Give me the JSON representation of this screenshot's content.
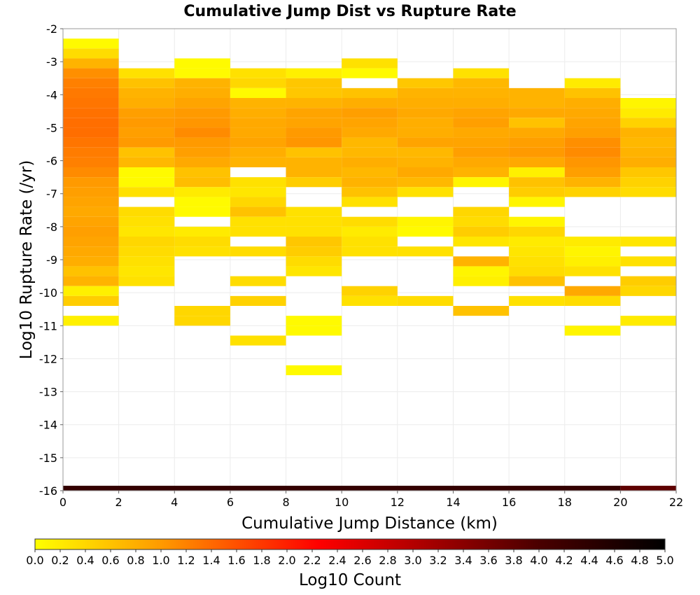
{
  "chart_data": {
    "type": "heatmap",
    "title": "Cumulative Jump Dist vs Rupture Rate",
    "xlabel": "Cumulative Jump Distance (km)",
    "ylabel": "Log10 Rupture Rate (/yr)",
    "xlim": [
      0,
      22
    ],
    "ylim": [
      -16,
      -2
    ],
    "x_ticks": [
      "0",
      "2",
      "4",
      "6",
      "8",
      "10",
      "12",
      "14",
      "16",
      "18",
      "20",
      "22"
    ],
    "y_ticks": [
      "-2",
      "-3",
      "-4",
      "-5",
      "-6",
      "-7",
      "-8",
      "-9",
      "-10",
      "-11",
      "-12",
      "-13",
      "-14",
      "-15",
      "-16"
    ],
    "x_bin_width": 2,
    "y_bin_height": 0.3,
    "grid": true,
    "colorscale": {
      "label": "Log10 Count",
      "range": [
        0,
        5
      ],
      "ticks": [
        "0.0",
        "0.2",
        "0.4",
        "0.6",
        "0.8",
        "1.0",
        "1.2",
        "1.4",
        "1.6",
        "1.8",
        "2.0",
        "2.2",
        "2.4",
        "2.6",
        "2.8",
        "3.0",
        "3.2",
        "3.4",
        "3.6",
        "3.8",
        "4.0",
        "4.2",
        "4.4",
        "4.6",
        "4.8",
        "5.0"
      ],
      "colors": [
        "#ffff00",
        "#ff6a00",
        "#ff0000",
        "#b40000",
        "#4a0000",
        "#000000"
      ]
    },
    "columns": [
      {
        "x_start": 0,
        "cells": [
          {
            "y": -2.45,
            "v": 0.05
          },
          {
            "y": -2.75,
            "v": 0.35
          },
          {
            "y": -3.05,
            "v": 0.75
          },
          {
            "y": -3.35,
            "v": 1.15
          },
          {
            "y": -3.65,
            "v": 1.35
          },
          {
            "y": -3.95,
            "v": 1.45
          },
          {
            "y": -4.25,
            "v": 1.5
          },
          {
            "y": -4.55,
            "v": 1.55
          },
          {
            "y": -4.85,
            "v": 1.6
          },
          {
            "y": -5.15,
            "v": 1.6
          },
          {
            "y": -5.45,
            "v": 1.5
          },
          {
            "y": -5.75,
            "v": 1.4
          },
          {
            "y": -6.05,
            "v": 1.35
          },
          {
            "y": -6.35,
            "v": 1.2
          },
          {
            "y": -6.65,
            "v": 1.0
          },
          {
            "y": -6.95,
            "v": 0.95
          },
          {
            "y": -7.25,
            "v": 0.9
          },
          {
            "y": -7.55,
            "v": 0.85
          },
          {
            "y": -7.85,
            "v": 0.9
          },
          {
            "y": -8.15,
            "v": 0.95
          },
          {
            "y": -8.45,
            "v": 0.9
          },
          {
            "y": -8.75,
            "v": 0.85
          },
          {
            "y": -9.05,
            "v": 0.8
          },
          {
            "y": -9.35,
            "v": 0.6
          },
          {
            "y": -9.65,
            "v": 0.75
          },
          {
            "y": -9.95,
            "v": 0.15
          },
          {
            "y": -10.25,
            "v": 0.5
          },
          {
            "y": -10.85,
            "v": 0.15
          }
        ]
      },
      {
        "x_start": 2,
        "cells": [
          {
            "y": -3.35,
            "v": 0.3
          },
          {
            "y": -3.65,
            "v": 0.6
          },
          {
            "y": -3.95,
            "v": 0.75
          },
          {
            "y": -4.25,
            "v": 0.8
          },
          {
            "y": -4.55,
            "v": 0.95
          },
          {
            "y": -4.85,
            "v": 1.0
          },
          {
            "y": -5.15,
            "v": 0.95
          },
          {
            "y": -5.45,
            "v": 1.0
          },
          {
            "y": -5.75,
            "v": 0.6
          },
          {
            "y": -6.05,
            "v": 0.7
          },
          {
            "y": -6.35,
            "v": 0.05
          },
          {
            "y": -6.65,
            "v": 0.05
          },
          {
            "y": -6.95,
            "v": 0.3
          },
          {
            "y": -7.55,
            "v": 0.35
          },
          {
            "y": -7.85,
            "v": 0.3
          },
          {
            "y": -8.15,
            "v": 0.25
          },
          {
            "y": -8.45,
            "v": 0.4
          },
          {
            "y": -8.75,
            "v": 0.35
          },
          {
            "y": -9.05,
            "v": 0.3
          },
          {
            "y": -9.35,
            "v": 0.25
          },
          {
            "y": -9.65,
            "v": 0.3
          }
        ]
      },
      {
        "x_start": 4,
        "cells": [
          {
            "y": -3.05,
            "v": 0.05
          },
          {
            "y": -3.35,
            "v": 0.05
          },
          {
            "y": -3.65,
            "v": 0.75
          },
          {
            "y": -3.95,
            "v": 0.8
          },
          {
            "y": -4.25,
            "v": 0.9
          },
          {
            "y": -4.55,
            "v": 1.0
          },
          {
            "y": -4.85,
            "v": 1.05
          },
          {
            "y": -5.15,
            "v": 1.2
          },
          {
            "y": -5.45,
            "v": 1.0
          },
          {
            "y": -5.75,
            "v": 0.95
          },
          {
            "y": -6.05,
            "v": 0.85
          },
          {
            "y": -6.35,
            "v": 0.6
          },
          {
            "y": -6.65,
            "v": 0.65
          },
          {
            "y": -6.95,
            "v": 0.2
          },
          {
            "y": -7.25,
            "v": 0.05
          },
          {
            "y": -7.55,
            "v": 0.05
          },
          {
            "y": -8.15,
            "v": 0.2
          },
          {
            "y": -8.45,
            "v": 0.35
          },
          {
            "y": -8.75,
            "v": 0.3
          },
          {
            "y": -10.55,
            "v": 0.4
          },
          {
            "y": -10.85,
            "v": 0.4
          }
        ]
      },
      {
        "x_start": 6,
        "cells": [
          {
            "y": -3.35,
            "v": 0.3
          },
          {
            "y": -3.65,
            "v": 0.4
          },
          {
            "y": -3.95,
            "v": 0.05
          },
          {
            "y": -4.25,
            "v": 0.75
          },
          {
            "y": -4.55,
            "v": 0.8
          },
          {
            "y": -4.85,
            "v": 0.85
          },
          {
            "y": -5.15,
            "v": 0.85
          },
          {
            "y": -5.45,
            "v": 0.9
          },
          {
            "y": -5.75,
            "v": 0.8
          },
          {
            "y": -6.05,
            "v": 0.75
          },
          {
            "y": -6.65,
            "v": 0.3
          },
          {
            "y": -6.95,
            "v": 0.25
          },
          {
            "y": -7.25,
            "v": 0.4
          },
          {
            "y": -7.55,
            "v": 0.6
          },
          {
            "y": -7.85,
            "v": 0.3
          },
          {
            "y": -8.15,
            "v": 0.3
          },
          {
            "y": -8.75,
            "v": 0.35
          },
          {
            "y": -9.65,
            "v": 0.35
          },
          {
            "y": -10.25,
            "v": 0.45
          },
          {
            "y": -11.45,
            "v": 0.3
          }
        ]
      },
      {
        "x_start": 8,
        "cells": [
          {
            "y": -3.35,
            "v": 0.15
          },
          {
            "y": -3.65,
            "v": 0.55
          },
          {
            "y": -3.95,
            "v": 0.55
          },
          {
            "y": -4.25,
            "v": 0.75
          },
          {
            "y": -4.55,
            "v": 0.9
          },
          {
            "y": -4.85,
            "v": 0.9
          },
          {
            "y": -5.15,
            "v": 1.0
          },
          {
            "y": -5.45,
            "v": 1.05
          },
          {
            "y": -5.75,
            "v": 0.6
          },
          {
            "y": -6.05,
            "v": 0.75
          },
          {
            "y": -6.35,
            "v": 0.75
          },
          {
            "y": -6.65,
            "v": 0.5
          },
          {
            "y": -7.55,
            "v": 0.3
          },
          {
            "y": -7.85,
            "v": 0.3
          },
          {
            "y": -8.15,
            "v": 0.3
          },
          {
            "y": -8.45,
            "v": 0.55
          },
          {
            "y": -8.75,
            "v": 0.5
          },
          {
            "y": -9.05,
            "v": 0.35
          },
          {
            "y": -9.35,
            "v": 0.25
          },
          {
            "y": -10.85,
            "v": 0.05
          },
          {
            "y": -11.15,
            "v": 0.05
          },
          {
            "y": -12.35,
            "v": 0.05
          }
        ]
      },
      {
        "x_start": 10,
        "cells": [
          {
            "y": -3.05,
            "v": 0.3
          },
          {
            "y": -3.35,
            "v": 0.05
          },
          {
            "y": -3.95,
            "v": 0.6
          },
          {
            "y": -4.25,
            "v": 0.8
          },
          {
            "y": -4.55,
            "v": 0.95
          },
          {
            "y": -4.85,
            "v": 0.9
          },
          {
            "y": -5.15,
            "v": 0.85
          },
          {
            "y": -5.45,
            "v": 0.7
          },
          {
            "y": -5.75,
            "v": 0.7
          },
          {
            "y": -6.05,
            "v": 0.8
          },
          {
            "y": -6.35,
            "v": 0.7
          },
          {
            "y": -6.65,
            "v": 0.75
          },
          {
            "y": -6.95,
            "v": 0.6
          },
          {
            "y": -7.25,
            "v": 0.3
          },
          {
            "y": -7.85,
            "v": 0.35
          },
          {
            "y": -8.15,
            "v": 0.2
          },
          {
            "y": -8.45,
            "v": 0.3
          },
          {
            "y": -8.75,
            "v": 0.3
          },
          {
            "y": -9.95,
            "v": 0.45
          },
          {
            "y": -10.25,
            "v": 0.3
          }
        ]
      },
      {
        "x_start": 12,
        "cells": [
          {
            "y": -3.65,
            "v": 0.55
          },
          {
            "y": -3.95,
            "v": 0.75
          },
          {
            "y": -4.25,
            "v": 0.8
          },
          {
            "y": -4.55,
            "v": 0.85
          },
          {
            "y": -4.85,
            "v": 0.8
          },
          {
            "y": -5.15,
            "v": 0.8
          },
          {
            "y": -5.45,
            "v": 0.9
          },
          {
            "y": -5.75,
            "v": 0.7
          },
          {
            "y": -6.05,
            "v": 0.75
          },
          {
            "y": -6.35,
            "v": 0.85
          },
          {
            "y": -6.65,
            "v": 0.7
          },
          {
            "y": -6.95,
            "v": 0.3
          },
          {
            "y": -7.85,
            "v": 0.1
          },
          {
            "y": -8.15,
            "v": 0.05
          },
          {
            "y": -8.75,
            "v": 0.3
          },
          {
            "y": -10.25,
            "v": 0.35
          }
        ]
      },
      {
        "x_start": 14,
        "cells": [
          {
            "y": -3.35,
            "v": 0.3
          },
          {
            "y": -3.65,
            "v": 0.7
          },
          {
            "y": -3.95,
            "v": 0.75
          },
          {
            "y": -4.25,
            "v": 0.8
          },
          {
            "y": -4.55,
            "v": 0.9
          },
          {
            "y": -4.85,
            "v": 0.95
          },
          {
            "y": -5.15,
            "v": 0.85
          },
          {
            "y": -5.45,
            "v": 0.9
          },
          {
            "y": -5.75,
            "v": 0.95
          },
          {
            "y": -6.05,
            "v": 0.85
          },
          {
            "y": -6.35,
            "v": 0.75
          },
          {
            "y": -6.65,
            "v": 0.1
          },
          {
            "y": -7.55,
            "v": 0.4
          },
          {
            "y": -7.85,
            "v": 0.35
          },
          {
            "y": -8.15,
            "v": 0.5
          },
          {
            "y": -8.45,
            "v": 0.25
          },
          {
            "y": -9.05,
            "v": 0.75
          },
          {
            "y": -9.35,
            "v": 0.1
          },
          {
            "y": -9.65,
            "v": 0.15
          },
          {
            "y": -10.55,
            "v": 0.6
          }
        ]
      },
      {
        "x_start": 16,
        "cells": [
          {
            "y": -3.95,
            "v": 0.75
          },
          {
            "y": -4.25,
            "v": 0.75
          },
          {
            "y": -4.55,
            "v": 0.85
          },
          {
            "y": -4.85,
            "v": 0.6
          },
          {
            "y": -5.15,
            "v": 0.85
          },
          {
            "y": -5.45,
            "v": 0.95
          },
          {
            "y": -5.75,
            "v": 1.0
          },
          {
            "y": -6.05,
            "v": 0.85
          },
          {
            "y": -6.35,
            "v": 0.15
          },
          {
            "y": -6.65,
            "v": 0.6
          },
          {
            "y": -6.95,
            "v": 0.5
          },
          {
            "y": -7.25,
            "v": 0.1
          },
          {
            "y": -7.85,
            "v": 0.1
          },
          {
            "y": -8.15,
            "v": 0.4
          },
          {
            "y": -8.45,
            "v": 0.2
          },
          {
            "y": -8.75,
            "v": 0.25
          },
          {
            "y": -9.05,
            "v": 0.3
          },
          {
            "y": -9.35,
            "v": 0.35
          },
          {
            "y": -9.65,
            "v": 0.6
          },
          {
            "y": -10.25,
            "v": 0.3
          }
        ]
      },
      {
        "x_start": 18,
        "cells": [
          {
            "y": -3.65,
            "v": 0.2
          },
          {
            "y": -3.95,
            "v": 0.6
          },
          {
            "y": -4.25,
            "v": 0.8
          },
          {
            "y": -4.55,
            "v": 0.85
          },
          {
            "y": -4.85,
            "v": 0.9
          },
          {
            "y": -5.15,
            "v": 0.95
          },
          {
            "y": -5.45,
            "v": 1.15
          },
          {
            "y": -5.75,
            "v": 1.2
          },
          {
            "y": -6.05,
            "v": 1.05
          },
          {
            "y": -6.35,
            "v": 0.95
          },
          {
            "y": -6.65,
            "v": 0.75
          },
          {
            "y": -6.95,
            "v": 0.45
          },
          {
            "y": -8.45,
            "v": 0.2
          },
          {
            "y": -8.75,
            "v": 0.1
          },
          {
            "y": -9.05,
            "v": 0.15
          },
          {
            "y": -9.35,
            "v": 0.3
          },
          {
            "y": -9.95,
            "v": 0.85
          },
          {
            "y": -10.25,
            "v": 0.35
          },
          {
            "y": -11.15,
            "v": 0.1
          }
        ]
      },
      {
        "x_start": 20,
        "cells": [
          {
            "y": -4.25,
            "v": 0.1
          },
          {
            "y": -4.55,
            "v": 0.2
          },
          {
            "y": -4.85,
            "v": 0.45
          },
          {
            "y": -5.15,
            "v": 0.75
          },
          {
            "y": -5.45,
            "v": 0.7
          },
          {
            "y": -5.75,
            "v": 0.75
          },
          {
            "y": -6.05,
            "v": 0.8
          },
          {
            "y": -6.35,
            "v": 0.55
          },
          {
            "y": -6.65,
            "v": 0.45
          },
          {
            "y": -6.95,
            "v": 0.35
          },
          {
            "y": -8.45,
            "v": 0.25
          },
          {
            "y": -9.05,
            "v": 0.3
          },
          {
            "y": -9.65,
            "v": 0.5
          },
          {
            "y": -9.95,
            "v": 0.4
          },
          {
            "y": -10.85,
            "v": 0.2
          }
        ]
      }
    ],
    "bottom_band": {
      "y_range": [
        -16,
        -15.85
      ],
      "segments": [
        {
          "x_start": 0,
          "x_end": 20,
          "v": 4.3
        },
        {
          "x_start": 20,
          "x_end": 22,
          "v": 3.8
        }
      ]
    }
  }
}
